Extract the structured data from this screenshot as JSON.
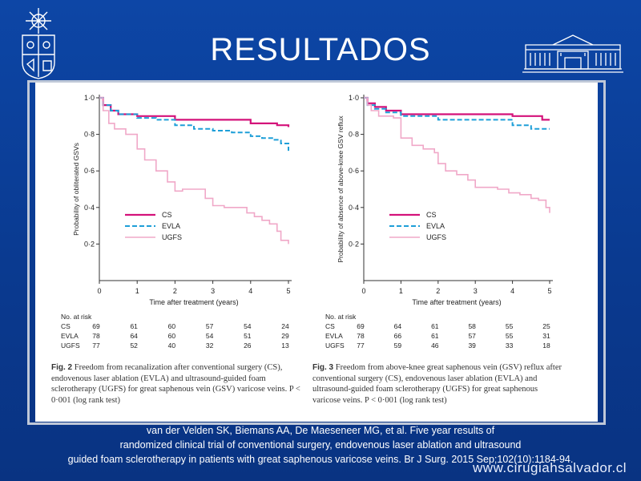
{
  "slide": {
    "title": "RESULTADOS",
    "citation_lines": [
      "van der Velden SK, Biemans AA, De Maeseneer MG, et al. Five year results of",
      "randomized clinical trial of conventional surgery, endovenous laser ablation and ultrasound",
      "guided foam sclerotherapy in patients with great saphenous varicose veins. Br J Surg. 2015 Sep;102(10):1184-94."
    ],
    "website": "www.cirugiahsalvador.cl"
  },
  "colors": {
    "cs": "#d4127a",
    "evla": "#1e9fd8",
    "ugfs": "#f0a8c8",
    "slide_bg": "#0b3a8e"
  },
  "chart_data": [
    {
      "type": "line",
      "step": true,
      "ylabel": "Probability of obliterated GSVs",
      "xlabel": "Time after treatment (years)",
      "x_ticks": [
        "0",
        "1",
        "2",
        "3",
        "4",
        "5"
      ],
      "y_ticks": [
        "0·2",
        "0·4",
        "0·6",
        "0·8",
        "1·0"
      ],
      "xlim": [
        0,
        5
      ],
      "ylim": [
        0,
        1.0
      ],
      "legend": "center-right",
      "series": [
        {
          "name": "CS",
          "x": [
            0,
            0.1,
            0.3,
            0.5,
            1.0,
            2.0,
            3.0,
            4.0,
            4.7,
            5.0
          ],
          "y": [
            1.0,
            0.96,
            0.93,
            0.91,
            0.9,
            0.88,
            0.88,
            0.86,
            0.85,
            0.84
          ]
        },
        {
          "name": "EVLA",
          "x": [
            0,
            0.1,
            0.3,
            0.5,
            1.0,
            1.5,
            2.0,
            2.5,
            3.0,
            3.5,
            4.0,
            4.3,
            4.6,
            4.8,
            5.0
          ],
          "y": [
            1.0,
            0.96,
            0.93,
            0.91,
            0.89,
            0.88,
            0.85,
            0.83,
            0.82,
            0.81,
            0.79,
            0.78,
            0.77,
            0.75,
            0.71
          ]
        },
        {
          "name": "UGFS",
          "x": [
            0,
            0.1,
            0.25,
            0.4,
            0.7,
            1.0,
            1.2,
            1.5,
            1.8,
            2.0,
            2.2,
            2.5,
            2.8,
            3.0,
            3.3,
            3.6,
            3.9,
            4.1,
            4.3,
            4.5,
            4.7,
            4.8,
            5.0
          ],
          "y": [
            1.0,
            0.93,
            0.86,
            0.83,
            0.8,
            0.72,
            0.66,
            0.6,
            0.54,
            0.49,
            0.5,
            0.5,
            0.45,
            0.41,
            0.4,
            0.4,
            0.37,
            0.35,
            0.33,
            0.31,
            0.27,
            0.22,
            0.2
          ]
        }
      ],
      "at_risk": {
        "header": "No. at risk",
        "rows": [
          {
            "name": "CS",
            "values": [
              "69",
              "61",
              "60",
              "57",
              "54",
              "24"
            ]
          },
          {
            "name": "EVLA",
            "values": [
              "78",
              "64",
              "60",
              "54",
              "51",
              "29"
            ]
          },
          {
            "name": "UGFS",
            "values": [
              "77",
              "52",
              "40",
              "32",
              "26",
              "13"
            ]
          }
        ]
      },
      "caption_label": "Fig. 2",
      "caption_text": " Freedom from recanalization after conventional surgery (CS), endovenous laser ablation (EVLA) and ultrasound-guided foam sclerotherapy (UGFS) for great saphenous vein (GSV) varicose veins. P < 0·001 (log rank test)"
    },
    {
      "type": "line",
      "step": true,
      "ylabel": "Probability of absence of above-knee GSV reflux",
      "xlabel": "Time after treatment (years)",
      "x_ticks": [
        "0",
        "1",
        "2",
        "3",
        "4",
        "5"
      ],
      "y_ticks": [
        "0·2",
        "0·4",
        "0·6",
        "0·8",
        "1·0"
      ],
      "xlim": [
        0,
        5
      ],
      "ylim": [
        0,
        1.0
      ],
      "legend": "center-right",
      "series": [
        {
          "name": "CS",
          "x": [
            0,
            0.1,
            0.3,
            0.6,
            1.0,
            2.0,
            3.0,
            4.0,
            4.8,
            5.0
          ],
          "y": [
            1.0,
            0.97,
            0.95,
            0.93,
            0.91,
            0.91,
            0.91,
            0.9,
            0.88,
            0.88
          ]
        },
        {
          "name": "EVLA",
          "x": [
            0,
            0.1,
            0.3,
            0.6,
            1.0,
            2.0,
            3.0,
            4.0,
            4.5,
            5.0
          ],
          "y": [
            1.0,
            0.96,
            0.94,
            0.92,
            0.9,
            0.88,
            0.88,
            0.85,
            0.83,
            0.83
          ]
        },
        {
          "name": "UGFS",
          "x": [
            0,
            0.1,
            0.2,
            0.4,
            0.8,
            1.0,
            1.3,
            1.6,
            1.9,
            2.0,
            2.2,
            2.5,
            2.8,
            3.0,
            3.3,
            3.6,
            3.9,
            4.2,
            4.5,
            4.7,
            4.9,
            5.0
          ],
          "y": [
            1.0,
            0.96,
            0.93,
            0.9,
            0.89,
            0.78,
            0.74,
            0.72,
            0.7,
            0.64,
            0.6,
            0.58,
            0.55,
            0.51,
            0.51,
            0.5,
            0.48,
            0.47,
            0.45,
            0.44,
            0.4,
            0.37
          ]
        }
      ],
      "at_risk": {
        "header": "No. at risk",
        "rows": [
          {
            "name": "CS",
            "values": [
              "69",
              "64",
              "61",
              "58",
              "55",
              "25"
            ]
          },
          {
            "name": "EVLA",
            "values": [
              "78",
              "66",
              "61",
              "57",
              "55",
              "31"
            ]
          },
          {
            "name": "UGFS",
            "values": [
              "77",
              "59",
              "46",
              "39",
              "33",
              "18"
            ]
          }
        ]
      },
      "caption_label": "Fig. 3",
      "caption_text": " Freedom from above-knee great saphenous vein (GSV) reflux after conventional surgery (CS), endovenous laser ablation (EVLA) and ultrasound-guided foam sclerotherapy (UGFS) for great saphenous varicose veins. P < 0·001 (log rank test)"
    }
  ]
}
